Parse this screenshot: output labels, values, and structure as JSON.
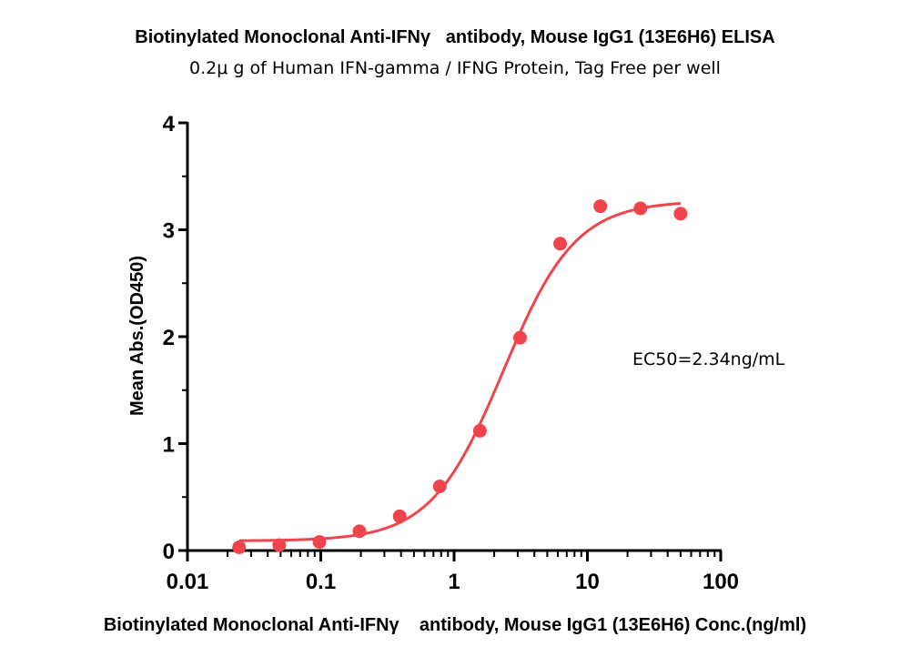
{
  "chart_data": {
    "type": "scatter",
    "title": "Biotinylated Monoclonal Anti-IFNγ   antibody, Mouse IgG1 (13E6H6) ELISA",
    "subtitle": "0.2μ g of Human IFN-gamma / IFNG Protein, Tag Free per well",
    "xlabel": "Biotinylated Monoclonal Anti-IFNγ    antibody, Mouse IgG1 (13E6H6) Conc.(ng/ml)",
    "ylabel": "Mean Abs.(OD450)",
    "x_scale": "log",
    "xlim": [
      0.01,
      100
    ],
    "ylim": [
      0,
      4
    ],
    "x_ticks": [
      0.01,
      0.1,
      1,
      10,
      100
    ],
    "x_tick_labels": [
      "0.01",
      "0.1",
      "1",
      "10",
      "100"
    ],
    "y_ticks": [
      0,
      1,
      2,
      3,
      4
    ],
    "y_tick_labels": [
      "0",
      "1",
      "2",
      "3",
      "4"
    ],
    "grid": false,
    "color": "#f0444c",
    "series": [
      {
        "x": [
          0.0244,
          0.0488,
          0.0977,
          0.195,
          0.391,
          0.781,
          1.5625,
          3.125,
          6.25,
          12.5,
          25,
          50
        ],
        "y": [
          0.03,
          0.05,
          0.08,
          0.18,
          0.32,
          0.6,
          1.12,
          1.99,
          2.87,
          3.22,
          3.2,
          3.15
        ]
      }
    ],
    "fit": {
      "model": "4PL",
      "bottom": 0.09,
      "top": 3.27,
      "ec50": 2.34,
      "hill": 1.6,
      "x_range": [
        0.0244,
        50
      ]
    },
    "annotations": [
      "EC50=2.34ng/mL"
    ]
  }
}
